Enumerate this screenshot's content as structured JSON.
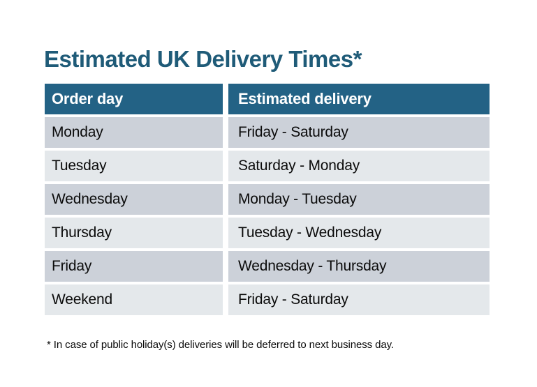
{
  "title": {
    "text": "Estimated UK Delivery Times*",
    "color": "#1f5b78"
  },
  "table": {
    "header": {
      "columns": [
        "Order day",
        "Estimated delivery"
      ],
      "background": "#236285",
      "text_color": "#ffffff"
    },
    "rows": [
      {
        "order_day": "Monday",
        "estimated_delivery": "Friday - Saturday"
      },
      {
        "order_day": "Tuesday",
        "estimated_delivery": "Saturday - Monday"
      },
      {
        "order_day": "Wednesday",
        "estimated_delivery": "Monday - Tuesday"
      },
      {
        "order_day": "Thursday",
        "estimated_delivery": "Tuesday - Wednesday"
      },
      {
        "order_day": "Friday",
        "estimated_delivery": "Wednesday - Thursday"
      },
      {
        "order_day": "Weekend",
        "estimated_delivery": "Friday - Saturday"
      }
    ],
    "row_colors": {
      "odd": "#ccd1d9",
      "even": "#e4e8eb"
    }
  },
  "footnote": {
    "text": "* In case of public holiday(s) deliveries will be deferred to next business day."
  }
}
